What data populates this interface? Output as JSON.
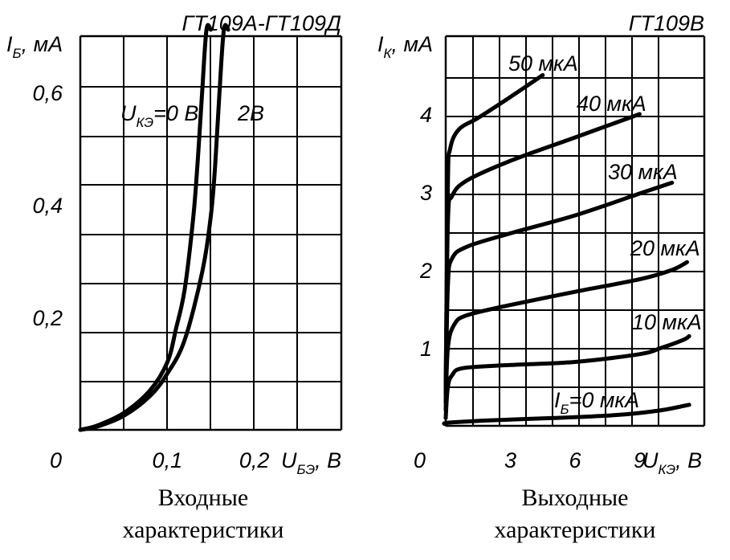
{
  "chart_data": [
    {
      "type": "line",
      "title": "ГТ109А-ГТ109Д",
      "caption": [
        "Входные",
        "характеристики"
      ],
      "ylabel": {
        "main": "I",
        "sub": "Б",
        "unit": ", мА"
      },
      "xlabel": {
        "main": "U",
        "sub": "БЭ",
        "unit": ", В"
      },
      "origin_label": "0",
      "xlim": [
        0,
        0.3
      ],
      "ylim": [
        0,
        0.7
      ],
      "x_ticks": [
        {
          "value": 0.1,
          "label": "0,1"
        },
        {
          "value": 0.2,
          "label": "0,2"
        }
      ],
      "y_ticks": [
        {
          "value": 0.2,
          "label": "0,2"
        },
        {
          "value": 0.4,
          "label": "0,4"
        },
        {
          "value": 0.6,
          "label": "0,6"
        }
      ],
      "grid": true,
      "series_label_prefix": {
        "main": "U",
        "sub": "КЭ"
      },
      "series": [
        {
          "name": "0 В",
          "label": "=0 В",
          "points": [
            [
              0,
              0
            ],
            [
              0.02,
              0.008
            ],
            [
              0.05,
              0.03
            ],
            [
              0.08,
              0.07
            ],
            [
              0.1,
              0.12
            ],
            [
              0.11,
              0.18
            ],
            [
              0.12,
              0.25
            ],
            [
              0.13,
              0.38
            ],
            [
              0.135,
              0.48
            ],
            [
              0.14,
              0.6
            ],
            [
              0.145,
              0.74
            ],
            [
              0.15,
              0.83
            ]
          ]
        },
        {
          "name": "2 В",
          "label": "2В",
          "points": [
            [
              0,
              0
            ],
            [
              0.02,
              0.006
            ],
            [
              0.05,
              0.025
            ],
            [
              0.08,
              0.06
            ],
            [
              0.1,
              0.1
            ],
            [
              0.12,
              0.16
            ],
            [
              0.14,
              0.28
            ],
            [
              0.15,
              0.38
            ],
            [
              0.155,
              0.47
            ],
            [
              0.16,
              0.6
            ],
            [
              0.165,
              0.74
            ],
            [
              0.17,
              0.83
            ]
          ]
        }
      ]
    },
    {
      "type": "line",
      "title": "ГТ109В",
      "caption": [
        "Выходные",
        "характеристики"
      ],
      "ylabel": {
        "main": "I",
        "sub": "К",
        "unit": ", мА"
      },
      "xlabel": {
        "main": "U",
        "sub": "КЭ",
        "unit": ", В"
      },
      "origin_label": "0",
      "xlim": [
        0,
        12
      ],
      "ylim": [
        0,
        5
      ],
      "x_ticks": [
        {
          "value": 3,
          "label": "3"
        },
        {
          "value": 6,
          "label": "6"
        },
        {
          "value": 9,
          "label": "9"
        }
      ],
      "y_ticks": [
        {
          "value": 1,
          "label": "1"
        },
        {
          "value": 2,
          "label": "2"
        },
        {
          "value": 3,
          "label": "3"
        },
        {
          "value": 4,
          "label": "4"
        }
      ],
      "grid": true,
      "first_series_prefix": {
        "main": "I",
        "sub": "Б"
      },
      "series": [
        {
          "name": "0 мкА",
          "label": "=0 мкА",
          "points": [
            [
              0,
              0.02
            ],
            [
              0.1,
              0.04
            ],
            [
              2,
              0.07
            ],
            [
              5,
              0.1
            ],
            [
              8,
              0.14
            ],
            [
              10,
              0.2
            ],
            [
              11.3,
              0.27
            ]
          ]
        },
        {
          "name": "10 мкА",
          "label": "10 мкА",
          "points": [
            [
              0,
              0.1
            ],
            [
              0.1,
              0.5
            ],
            [
              0.3,
              0.65
            ],
            [
              0.8,
              0.74
            ],
            [
              3,
              0.78
            ],
            [
              6,
              0.82
            ],
            [
              9,
              0.92
            ],
            [
              10,
              1.0
            ],
            [
              11,
              1.1
            ],
            [
              11.3,
              1.15
            ]
          ]
        },
        {
          "name": "20 мкА",
          "label": "20 мкА",
          "points": [
            [
              0,
              0.2
            ],
            [
              0.1,
              1.0
            ],
            [
              0.4,
              1.3
            ],
            [
              1,
              1.42
            ],
            [
              3,
              1.55
            ],
            [
              6,
              1.72
            ],
            [
              9,
              1.88
            ],
            [
              10.5,
              2.0
            ],
            [
              11.2,
              2.1
            ]
          ]
        },
        {
          "name": "30 мкА",
          "label": "30 мкА",
          "points": [
            [
              0,
              0.3
            ],
            [
              0.1,
              1.8
            ],
            [
              0.3,
              2.15
            ],
            [
              1,
              2.3
            ],
            [
              3,
              2.47
            ],
            [
              6,
              2.7
            ],
            [
              9,
              2.98
            ],
            [
              10.5,
              3.12
            ]
          ]
        },
        {
          "name": "40 мкА",
          "label": "40 мкА",
          "points": [
            [
              0,
              0.4
            ],
            [
              0.1,
              2.6
            ],
            [
              0.3,
              2.95
            ],
            [
              1,
              3.15
            ],
            [
              3,
              3.4
            ],
            [
              6,
              3.7
            ],
            [
              9,
              4.0
            ]
          ]
        },
        {
          "name": "50 мкА",
          "label": "50 мкА",
          "points": [
            [
              0,
              0.5
            ],
            [
              0.1,
              3.1
            ],
            [
              0.2,
              3.55
            ],
            [
              0.6,
              3.8
            ],
            [
              1.5,
              3.95
            ],
            [
              3,
              4.22
            ],
            [
              4.5,
              4.5
            ]
          ]
        }
      ]
    }
  ]
}
